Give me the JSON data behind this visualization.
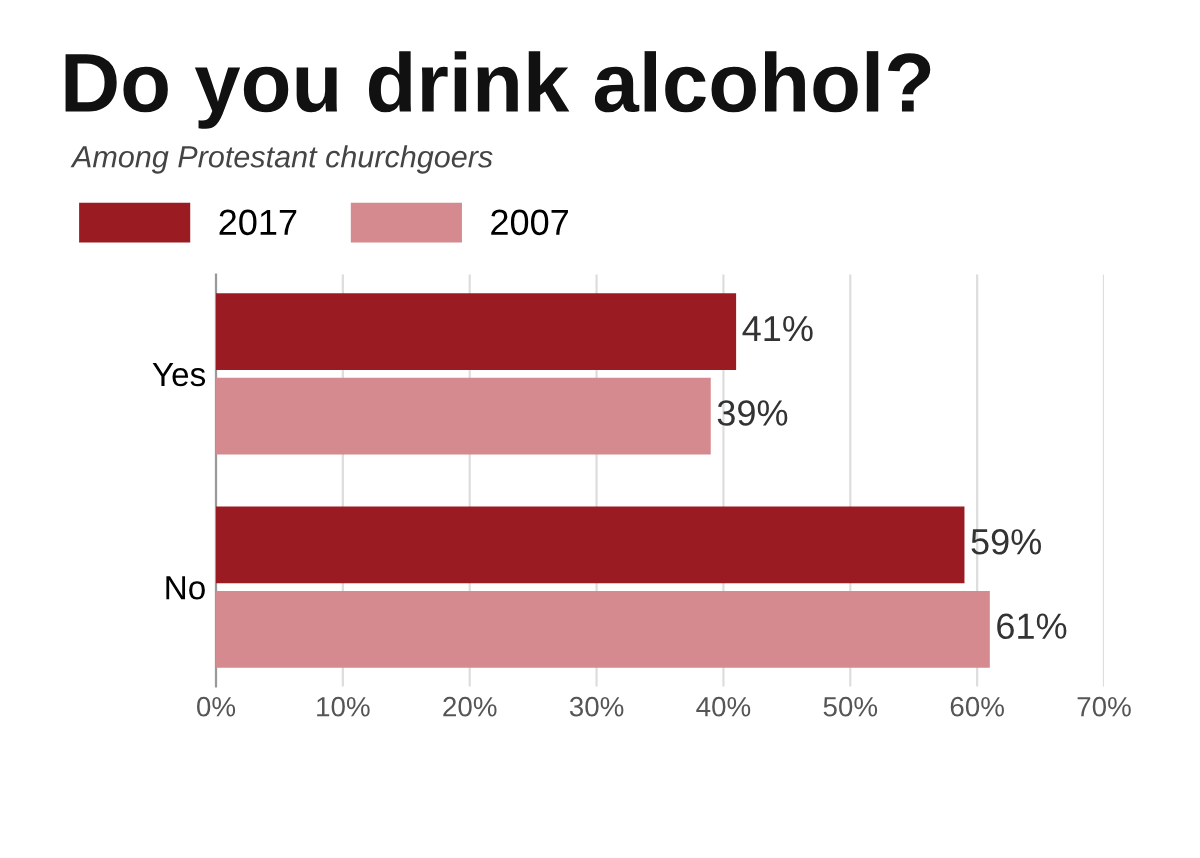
{
  "chart_data": {
    "type": "bar",
    "orientation": "horizontal",
    "title": "Do you drink alcohol?",
    "subtitle": "Among Protestant churchgoers",
    "categories": [
      "Yes",
      "No"
    ],
    "series": [
      {
        "name": "2017",
        "color": "#9b1b22",
        "values": [
          41,
          59
        ],
        "value_labels": [
          "41%",
          "59%"
        ]
      },
      {
        "name": "2007",
        "color": "#d48a8e",
        "values": [
          39,
          61
        ],
        "value_labels": [
          "39%",
          "61%"
        ]
      }
    ],
    "xlim": [
      0,
      70
    ],
    "xticks": [
      {
        "value": 0,
        "label": "0%"
      },
      {
        "value": 10,
        "label": "10%"
      },
      {
        "value": 20,
        "label": "20%"
      },
      {
        "value": 30,
        "label": "30%"
      },
      {
        "value": 40,
        "label": "40%"
      },
      {
        "value": 50,
        "label": "50%"
      },
      {
        "value": 60,
        "label": "60%"
      },
      {
        "value": 70,
        "label": "70%"
      }
    ],
    "grid": "x",
    "legend": "top left"
  }
}
